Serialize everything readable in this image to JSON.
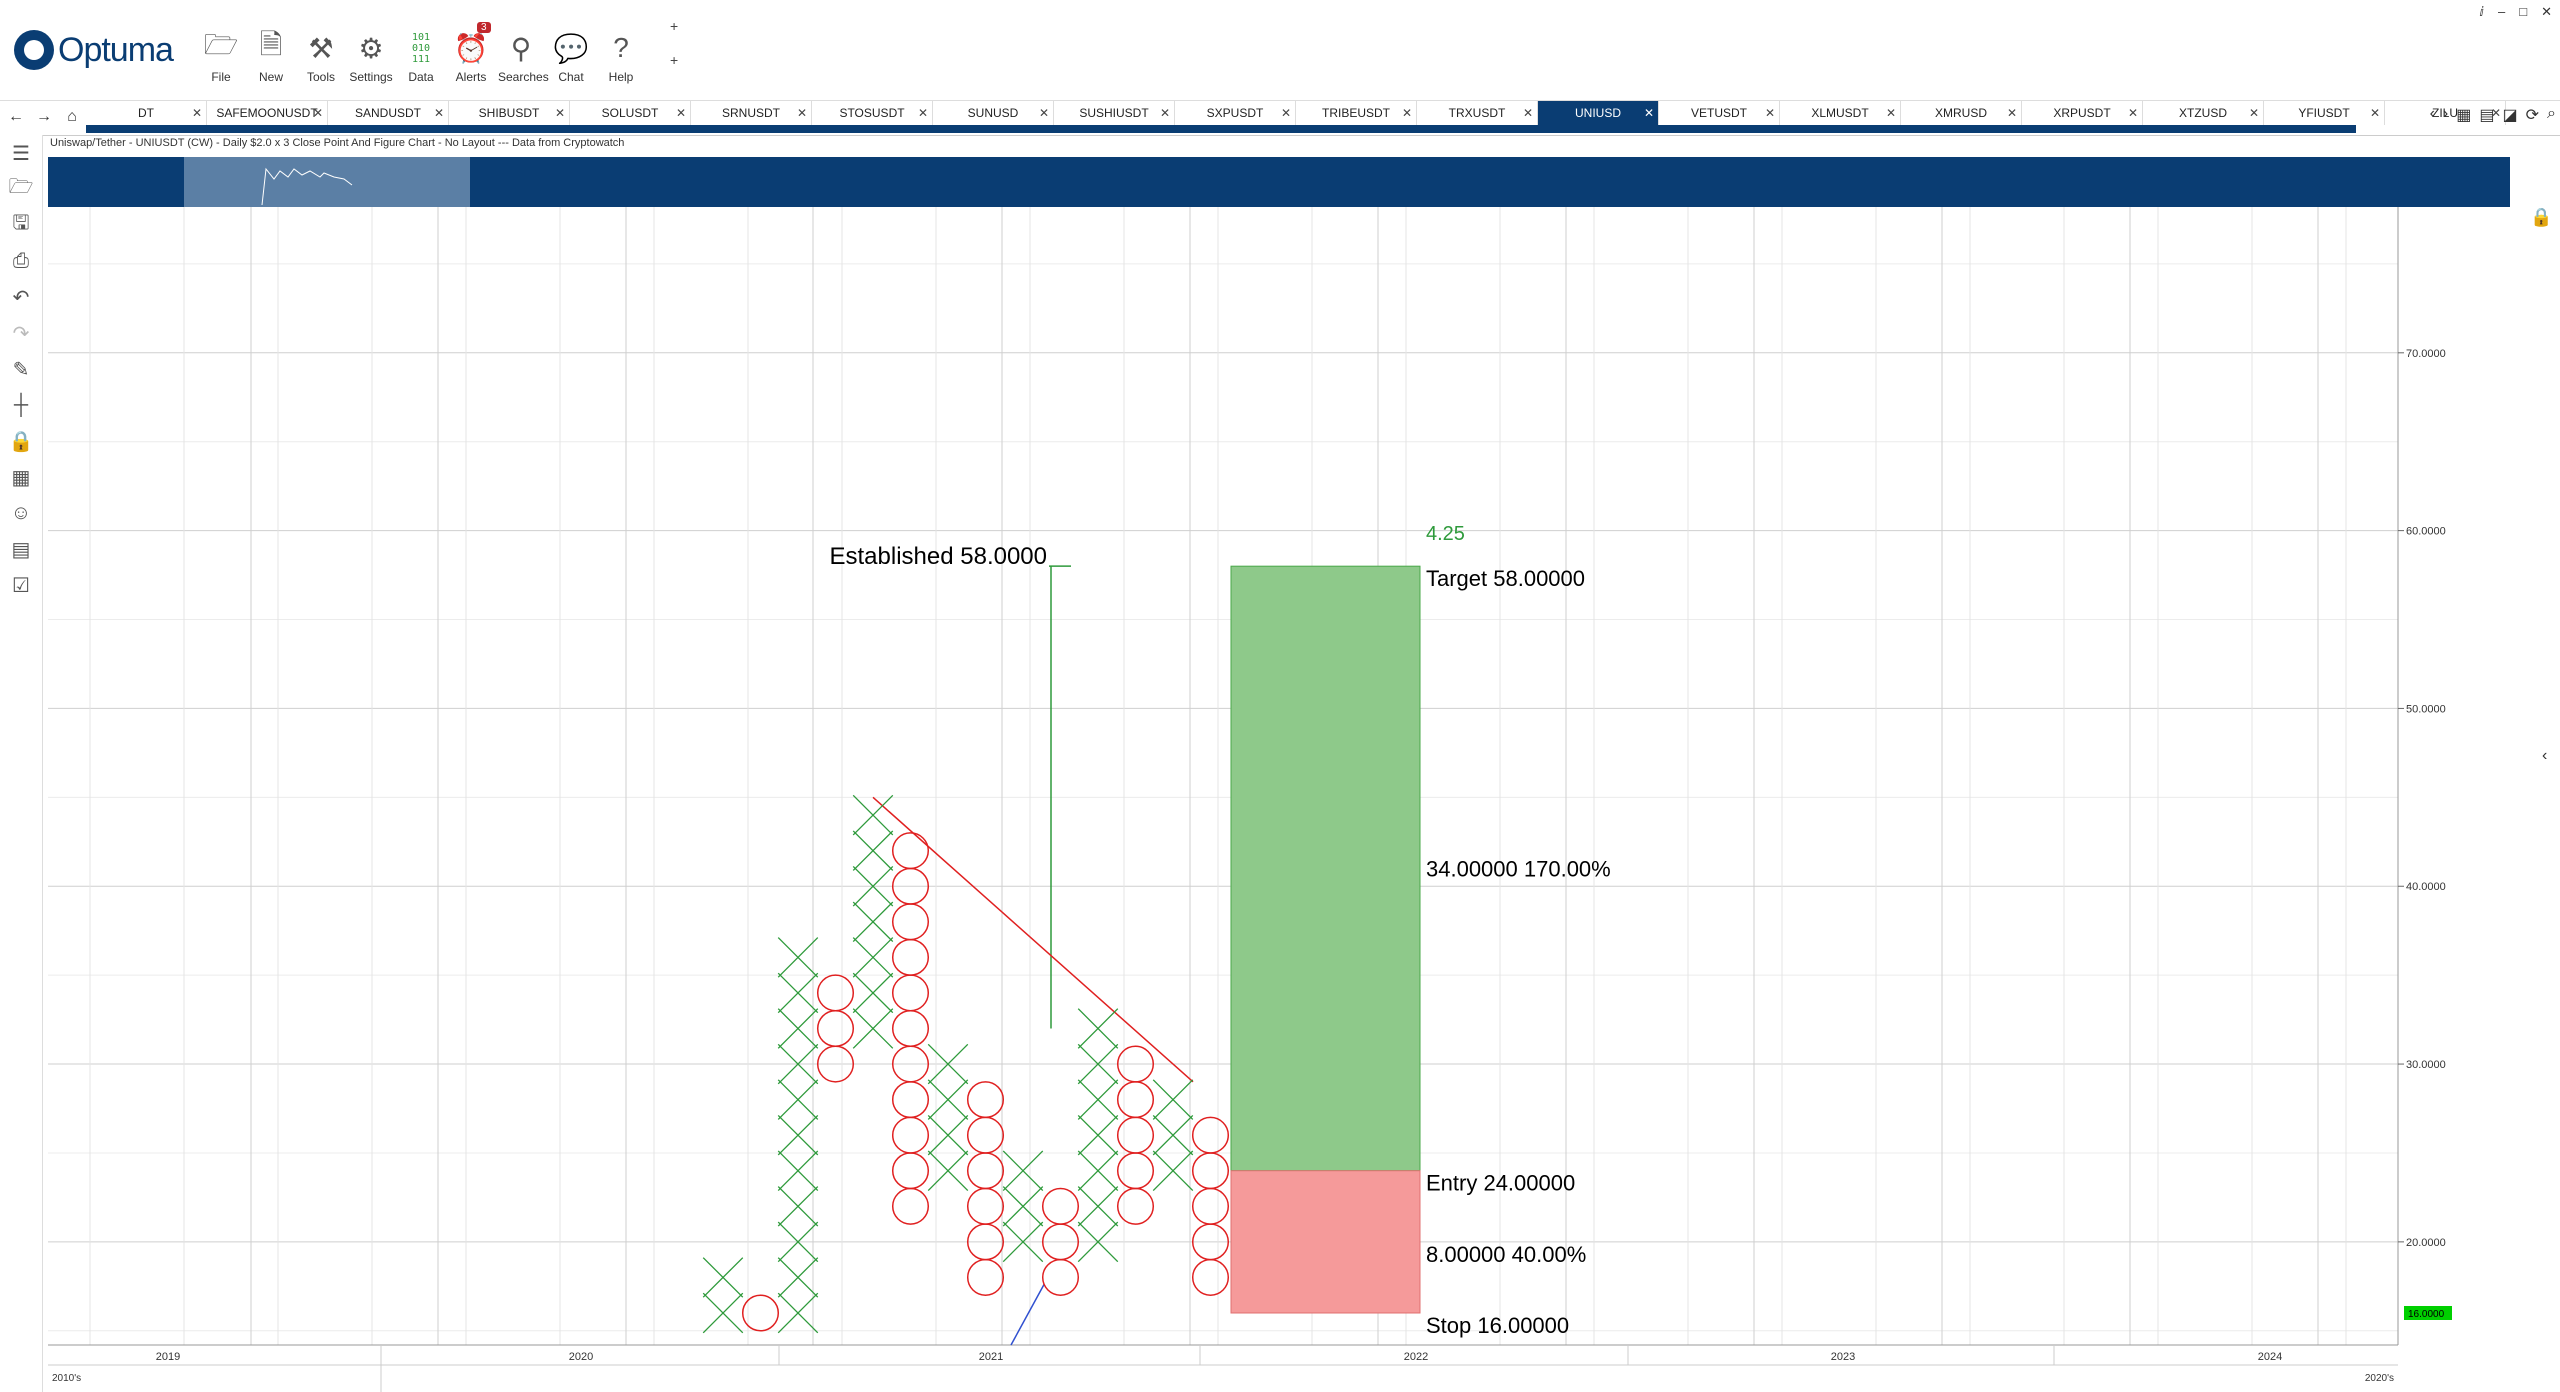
{
  "app": {
    "name": "Optuma"
  },
  "toolbar": {
    "buttons": [
      {
        "label": "File",
        "icon": "folder-icon"
      },
      {
        "label": "New",
        "icon": "new-chart-icon"
      },
      {
        "label": "Tools",
        "icon": "tools-icon"
      },
      {
        "label": "Settings",
        "icon": "settings-icon"
      },
      {
        "label": "Data",
        "icon": "binary-data-icon"
      },
      {
        "label": "Alerts",
        "icon": "alarm-clock-icon",
        "badge": "3"
      },
      {
        "label": "Searches",
        "icon": "magnifier-icon"
      },
      {
        "label": "Chat",
        "icon": "chat-bubbles-icon"
      },
      {
        "label": "Help",
        "icon": "question-icon"
      }
    ],
    "plus": "+"
  },
  "tabs": {
    "items": [
      "DT",
      "SAFEMOONUSDT",
      "SANDUSDT",
      "SHIBUSDT",
      "SOLUSDT",
      "SRNUSDT",
      "STOSUSDT",
      "SUNUSD",
      "SUSHIUSDT",
      "SXPUSDT",
      "TRIBEUSDT",
      "TRXUSDT",
      "UNIUSD",
      "VETUSDT",
      "XLMUSDT",
      "XMRUSD",
      "XRPUSDT",
      "XTZUSD",
      "YFIUSDT",
      "ZILU"
    ],
    "active": "UNIUSD",
    "close_glyph": "✕"
  },
  "chart_title": "Uniswap/Tether - UNIUSDT (CW) - Daily $2.0 x 3 Close Point And Figure Chart - No Layout --- Data from Cryptowatch",
  "colors": {
    "accent": "#0a3d73",
    "x_color": "#2e9a3b",
    "o_color": "#e02020",
    "trend_line": "#e02020",
    "target_fill": "#8ec98a",
    "stop_fill": "#f59a9a",
    "price_marker": "#00d000"
  },
  "chart_data": {
    "type": "point-and-figure",
    "box_size": 2.0,
    "reversal": 3,
    "ylim": [
      14.2,
      78.2
    ],
    "y_ticks": [
      "70.0000",
      "60.0000",
      "50.0000",
      "40.0000",
      "30.0000",
      "20.0000"
    ],
    "y_tick_values": [
      70,
      60,
      50,
      40,
      30,
      20
    ],
    "current_price": "16.0000",
    "current_price_value": 16,
    "x_years": [
      "2019",
      "2020",
      "2021",
      "2022",
      "2023",
      "2024"
    ],
    "x_decade_labels": [
      "2010's",
      "2020's"
    ],
    "columns": [
      {
        "type": "X",
        "col": 0,
        "from": 16,
        "to": 18
      },
      {
        "type": "O",
        "col": 1,
        "from": 16,
        "to": 16
      },
      {
        "type": "X",
        "col": 2,
        "from": 16,
        "to": 36
      },
      {
        "type": "O",
        "col": 3,
        "from": 30,
        "to": 34
      },
      {
        "type": "X",
        "col": 4,
        "from": 32,
        "to": 44
      },
      {
        "type": "O",
        "col": 5,
        "from": 22,
        "to": 42
      },
      {
        "type": "X",
        "col": 6,
        "from": 24,
        "to": 30
      },
      {
        "type": "O",
        "col": 7,
        "from": 18,
        "to": 28
      },
      {
        "type": "X",
        "col": 8,
        "from": 20,
        "to": 24
      },
      {
        "type": "O",
        "col": 9,
        "from": 18,
        "to": 22
      },
      {
        "type": "X",
        "col": 10,
        "from": 20,
        "to": 32
      },
      {
        "type": "O",
        "col": 11,
        "from": 22,
        "to": 30
      },
      {
        "type": "X",
        "col": 12,
        "from": 24,
        "to": 28
      },
      {
        "type": "O",
        "col": 13,
        "from": 18,
        "to": 26
      }
    ],
    "trend_line": {
      "from": {
        "col": 4,
        "value": 44
      },
      "to": {
        "col": 12,
        "value": 28
      }
    },
    "established": {
      "label": "Established",
      "value": "58.0000",
      "low": 32,
      "high": 58
    },
    "target": {
      "label": "Target",
      "value": "58.00000",
      "count": "4.25"
    },
    "entry": {
      "label": "Entry",
      "value": "24.00000"
    },
    "stop": {
      "label": "Stop",
      "value": "16.00000"
    },
    "reward": {
      "amount": "34.00000",
      "percent": "170.00%"
    },
    "risk": {
      "amount": "8.00000",
      "percent": "40.00%"
    }
  }
}
